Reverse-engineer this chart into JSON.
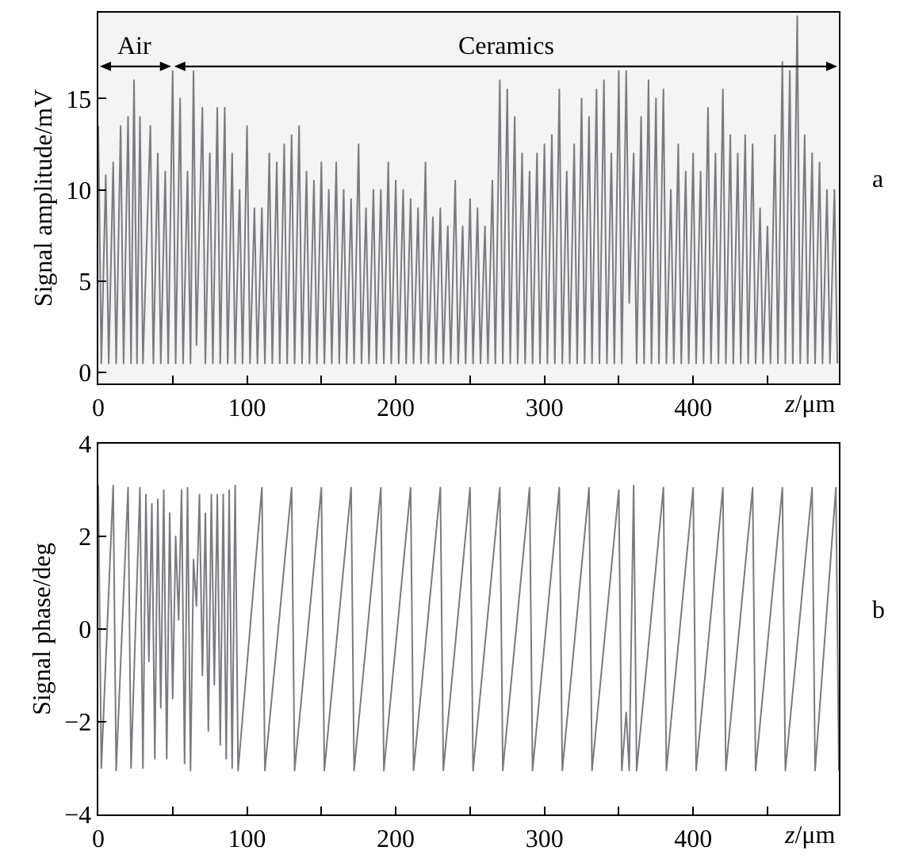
{
  "chart_data": [
    {
      "type": "line",
      "xlabel": "z/μm",
      "ylabel": "Signal amplitude/mV",
      "xlim": [
        0,
        498
      ],
      "ylim": [
        -0.6,
        19.7
      ],
      "xticks": [
        0,
        {
          "value": 50,
          "label": null
        },
        100,
        {
          "value": 150,
          "label": null
        },
        200,
        {
          "value": 250,
          "label": null
        },
        300,
        {
          "value": 350,
          "label": null
        },
        400,
        {
          "value": 450,
          "label": null
        }
      ],
      "yticks": [
        0,
        5,
        10,
        15
      ],
      "grid": false,
      "marker": "none",
      "line_style": "solid",
      "annotations": [
        "a"
      ],
      "bands": [
        {
          "axis": "x",
          "from": 0,
          "to": 50,
          "label": "Air"
        },
        {
          "axis": "x",
          "from": 50,
          "to": 498,
          "label": "Ceramics"
        }
      ],
      "series": [
        {
          "color": "#7a7b80",
          "x": [
            0,
            2,
            5,
            7,
            10,
            12,
            15,
            17,
            20,
            22,
            24,
            26,
            28,
            30,
            35,
            37,
            40,
            42,
            45,
            47,
            50,
            52,
            55,
            57,
            60,
            62,
            64,
            66,
            70,
            72,
            75,
            77,
            80,
            82,
            85,
            87,
            90,
            92,
            95,
            97,
            100,
            102,
            105,
            107,
            110,
            112,
            115,
            117,
            120,
            122,
            125,
            127,
            130,
            132,
            135,
            137,
            140,
            142,
            145,
            147,
            150,
            152,
            155,
            157,
            160,
            162,
            165,
            167,
            170,
            172,
            175,
            177,
            180,
            182,
            185,
            187,
            190,
            192,
            195,
            197,
            200,
            202,
            205,
            207,
            210,
            212,
            215,
            217,
            220,
            222,
            225,
            227,
            230,
            232,
            235,
            237,
            240,
            242,
            245,
            247,
            250,
            252,
            255,
            257,
            260,
            262,
            265,
            267,
            270,
            272,
            275,
            277,
            280,
            282,
            285,
            287,
            290,
            292,
            295,
            297,
            300,
            302,
            305,
            307,
            310,
            312,
            315,
            317,
            320,
            322,
            325,
            327,
            330,
            332,
            335,
            337,
            340,
            342,
            345,
            347,
            350,
            352,
            355,
            357,
            360,
            362,
            365,
            367,
            370,
            372,
            375,
            377,
            380,
            382,
            385,
            387,
            390,
            392,
            395,
            397,
            400,
            402,
            405,
            407,
            410,
            412,
            415,
            417,
            420,
            422,
            425,
            427,
            430,
            432,
            435,
            437,
            440,
            442,
            445,
            447,
            450,
            452,
            455,
            457,
            460,
            462,
            465,
            467,
            470,
            472,
            475,
            477,
            480,
            482,
            485,
            487,
            490,
            492,
            495,
            497
          ],
          "values": [
            13.5,
            0.5,
            10.8,
            0.5,
            11.5,
            0.5,
            13.5,
            0.5,
            14,
            0.5,
            16,
            0.5,
            14,
            0.5,
            13.5,
            0.5,
            12,
            0.5,
            11,
            0.5,
            16.5,
            0.5,
            15,
            0.5,
            11,
            0.5,
            16.5,
            1.5,
            14.5,
            0.5,
            12,
            0.5,
            14.5,
            0.5,
            14.5,
            0.5,
            12,
            0.5,
            10,
            0.5,
            13.5,
            0.5,
            9,
            0.5,
            9,
            0.5,
            12,
            0.5,
            11.5,
            0.5,
            12.5,
            0.5,
            13,
            0.5,
            13.5,
            0.5,
            11,
            0.5,
            10.5,
            0.5,
            11.5,
            0.5,
            10,
            0.5,
            11.5,
            0.5,
            10,
            0.5,
            9.5,
            0.5,
            12.5,
            0.5,
            9,
            0.5,
            10,
            0.5,
            10,
            0.5,
            11.5,
            0.5,
            10.5,
            0.5,
            10,
            0.5,
            9.5,
            0.5,
            9,
            0.5,
            11.5,
            0.5,
            8.5,
            0.5,
            9,
            0.5,
            8,
            0.5,
            10.5,
            0.5,
            8,
            0.5,
            9.5,
            0.5,
            9,
            0.5,
            8,
            0.5,
            10.5,
            0.5,
            16,
            0.5,
            15.5,
            0.5,
            14,
            0.5,
            12,
            0.5,
            11,
            0.5,
            12,
            0.5,
            12.5,
            0.5,
            13,
            0.5,
            15.5,
            0.5,
            11,
            0.5,
            12.5,
            0.5,
            15,
            0.5,
            14,
            0.5,
            15.5,
            0.5,
            16,
            0.5,
            12,
            0.5,
            16.5,
            0.5,
            16.5,
            3.8,
            12,
            0.5,
            14,
            0.5,
            16,
            0.5,
            15,
            0.5,
            15.5,
            0.5,
            10,
            0.5,
            12.5,
            0.5,
            11,
            0.5,
            12,
            0.5,
            11,
            0.5,
            14.5,
            0.5,
            12,
            0.5,
            15.5,
            0.5,
            13,
            0.5,
            12,
            0.5,
            13,
            0.5,
            12.5,
            0.5,
            9,
            0.5,
            8,
            0.5,
            13,
            0.5,
            17,
            0.5,
            16.5,
            0.5,
            19.5,
            0.5,
            13,
            0.5,
            12,
            0.5,
            11.5,
            0.5,
            10,
            0.5,
            10,
            0.5
          ]
        }
      ]
    },
    {
      "type": "line",
      "xlabel": "z/μm",
      "ylabel": "Signal phase/deg",
      "annotations": [
        "b"
      ],
      "xlim": [
        0,
        498
      ],
      "ylim": [
        -4,
        4
      ],
      "xticks": [
        0,
        {
          "value": 50,
          "label": null
        },
        100,
        {
          "value": 150,
          "label": null
        },
        200,
        {
          "value": 250,
          "label": null
        },
        300,
        {
          "value": 350,
          "label": null
        },
        400,
        {
          "value": 450,
          "label": null
        }
      ],
      "yticks": [
        -4,
        -2,
        0,
        2,
        4
      ],
      "grid": false,
      "marker": "none",
      "line_style": "solid",
      "series": [
        {
          "color": "#7a7b80",
          "x": [
            0,
            2,
            10,
            12,
            20,
            22,
            28,
            30,
            32,
            34,
            36,
            38,
            40,
            42,
            44,
            46,
            48,
            50,
            52,
            54,
            56,
            58,
            60,
            62,
            64,
            66,
            68,
            70,
            72,
            74,
            76,
            78,
            80,
            82,
            84,
            86,
            88,
            90,
            92,
            94,
            110,
            112,
            130,
            132,
            150,
            152,
            170,
            172,
            190,
            192,
            210,
            212,
            230,
            232,
            250,
            252,
            270,
            272,
            290,
            292,
            310,
            312,
            330,
            332,
            350,
            352,
            355,
            357,
            360,
            362,
            380,
            382,
            400,
            402,
            420,
            422,
            440,
            442,
            460,
            462,
            480,
            482,
            496,
            498
          ],
          "values": [
            3.1,
            -3,
            3.1,
            -3.05,
            3.05,
            -3,
            3.05,
            -3,
            2.9,
            -0.7,
            2.7,
            -2.8,
            2.8,
            -1.7,
            3,
            -2.8,
            2.5,
            -1.5,
            2,
            0.2,
            3,
            -2.9,
            3.05,
            -3.05,
            1.5,
            0.5,
            2.9,
            -1,
            2.5,
            -2.2,
            2.9,
            -1.2,
            2.9,
            -2.5,
            2.9,
            -2.8,
            3,
            -3,
            3.1,
            -3.05,
            3.05,
            -3.05,
            3.05,
            -3.05,
            3.05,
            -3.05,
            3.05,
            -3.05,
            3.05,
            -3.05,
            3.05,
            -3.05,
            3.05,
            -3.05,
            3.05,
            -3.05,
            3.05,
            -3.05,
            3.05,
            -3.05,
            3.05,
            -3.05,
            3.05,
            -3.05,
            3,
            -3.05,
            -1.8,
            -3.05,
            3.1,
            -3.05,
            3.05,
            -3.05,
            3.05,
            -3.05,
            3.05,
            -3.05,
            3.05,
            -3.05,
            3.05,
            -3.05,
            3.05,
            -3.05,
            3.05,
            -3.05
          ]
        }
      ]
    }
  ]
}
